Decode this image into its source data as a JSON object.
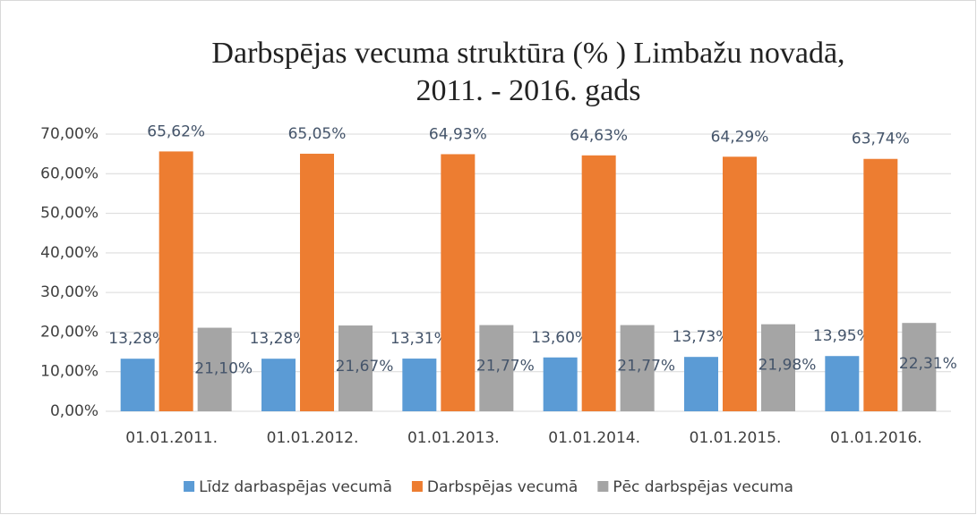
{
  "chart_data": {
    "type": "bar",
    "title": [
      "Darbspējas vecuma  struktūra (% ) Limbažu novadā,",
      "2011. - 2016. gads"
    ],
    "categories": [
      "01.01.2011.",
      "01.01.2012.",
      "01.01.2013.",
      "01.01.2014.",
      "01.01.2015.",
      "01.01.2016."
    ],
    "series": [
      {
        "name": "Līdz darbaspējas vecumā",
        "color": "#5b9bd5",
        "values": [
          13.28,
          13.28,
          13.31,
          13.6,
          13.73,
          13.95
        ],
        "value_labels": [
          "13,28%",
          "13,28%",
          "13,31%",
          "13,60%",
          "13,73%",
          "13,95%"
        ]
      },
      {
        "name": "Darbspējas vecumā",
        "color": "#ed7d31",
        "values": [
          65.62,
          65.05,
          64.93,
          64.63,
          64.29,
          63.74
        ],
        "value_labels": [
          "65,62%",
          "65,05%",
          "64,93%",
          "64,63%",
          "64,29%",
          "63,74%"
        ]
      },
      {
        "name": "Pēc darbspējas vecuma",
        "color": "#a5a5a5",
        "values": [
          21.1,
          21.67,
          21.77,
          21.77,
          21.98,
          22.31
        ],
        "value_labels": [
          "21,10%",
          "21,67%",
          "21,77%",
          "21,77%",
          "21,98%",
          "22,31%"
        ]
      }
    ],
    "ylim": [
      0,
      70
    ],
    "yticks": [
      {
        "value": 0,
        "label": "0,00%"
      },
      {
        "value": 10,
        "label": "10,00%"
      },
      {
        "value": 20,
        "label": "20,00%"
      },
      {
        "value": 30,
        "label": "30,00%"
      },
      {
        "value": 40,
        "label": "40,00%"
      },
      {
        "value": 50,
        "label": "50,00%"
      },
      {
        "value": 60,
        "label": "60,00%"
      },
      {
        "value": 70,
        "label": "70,00%"
      }
    ],
    "grid": true,
    "legend": "bottom"
  }
}
